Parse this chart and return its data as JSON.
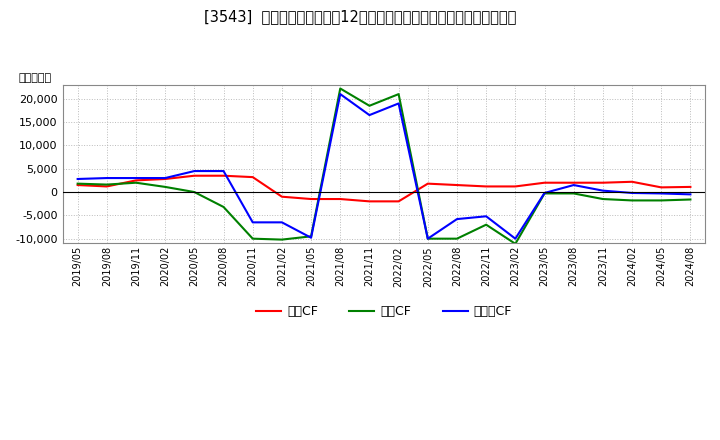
{
  "title": "[3543]  キャッシュフローの12か月移動合計の対前年同期増減額の推移",
  "ylabel": "（百万円）",
  "background_color": "#ffffff",
  "plot_bg_color": "#ffffff",
  "grid_color": "#aaaaaa",
  "ylim": [
    -11000,
    23000
  ],
  "yticks": [
    -10000,
    -5000,
    0,
    5000,
    10000,
    15000,
    20000
  ],
  "x_labels": [
    "2019/05",
    "2019/08",
    "2019/11",
    "2020/02",
    "2020/05",
    "2020/08",
    "2020/11",
    "2021/02",
    "2021/05",
    "2021/08",
    "2021/11",
    "2022/02",
    "2022/05",
    "2022/08",
    "2022/11",
    "2023/02",
    "2023/05",
    "2023/08",
    "2023/11",
    "2024/02",
    "2024/05",
    "2024/08"
  ],
  "operating_cf": [
    1500,
    1200,
    2500,
    2800,
    3500,
    3500,
    3200,
    -1000,
    -1500,
    -1500,
    -2000,
    -2000,
    1800,
    1500,
    1200,
    1200,
    2000,
    2000,
    2000,
    2200,
    1000,
    1100
  ],
  "investing_cf": [
    1800,
    1600,
    2000,
    1100,
    0,
    -3200,
    -10000,
    -10200,
    -9500,
    22200,
    18500,
    21000,
    -10000,
    -10000,
    -7000,
    -11100,
    -300,
    -300,
    -1500,
    -1800,
    -1800,
    -1600
  ],
  "free_cf": [
    2800,
    3000,
    3000,
    3000,
    4500,
    4500,
    -6500,
    -6500,
    -9800,
    21000,
    16500,
    19000,
    -10000,
    -5800,
    -5200,
    -10000,
    -200,
    1500,
    300,
    -200,
    -300,
    -500
  ],
  "line_colors": {
    "operating": "#ff0000",
    "investing": "#008000",
    "free": "#0000ff"
  },
  "legend_labels": [
    "営業CF",
    "投資CF",
    "フリーCF"
  ]
}
